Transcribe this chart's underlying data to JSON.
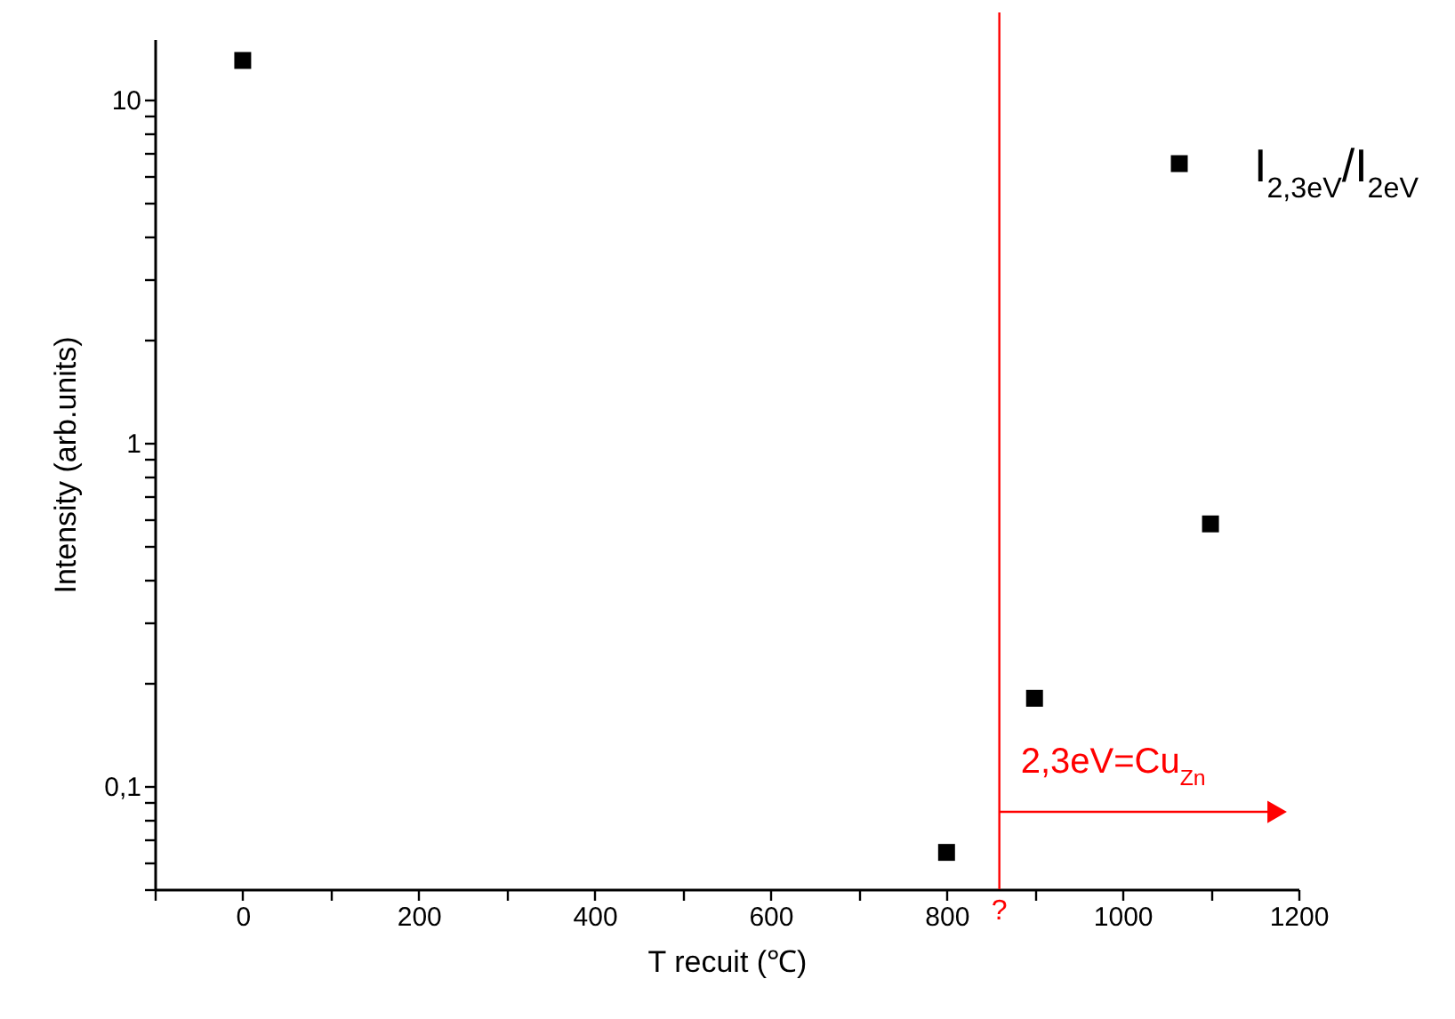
{
  "chart_data": {
    "type": "scatter",
    "xlabel": "T recuit (℃)",
    "ylabel": "Intensity (arb.units)",
    "x": [
      0,
      800,
      900,
      1100
    ],
    "series": [
      {
        "name": "I$_{2,3eV}$/I$_{2eV}$",
        "color": "#000000",
        "values": [
          13,
          0.064,
          0.18,
          0.58
        ]
      }
    ],
    "marker": "square",
    "log": "y",
    "legend": "top right",
    "grid": false,
    "xlim": [
      -100,
      1200
    ],
    "xticks": [
      {
        "value": -100,
        "label": null
      },
      0,
      {
        "value": 100,
        "label": null
      },
      200,
      {
        "value": 300,
        "label": null
      },
      400,
      {
        "value": 500,
        "label": null
      },
      600,
      {
        "value": 700,
        "label": null
      },
      800,
      {
        "value": 900,
        "label": null
      },
      1000,
      {
        "value": 1100,
        "label": null
      },
      1200
    ],
    "ylim": [
      0.05,
      15
    ],
    "yticks": [
      {
        "value": 0.05,
        "label": null
      },
      {
        "value": 0.06,
        "label": null
      },
      {
        "value": 0.07,
        "label": null
      },
      {
        "value": 0.08,
        "label": null
      },
      {
        "value": 0.09,
        "label": null
      },
      {
        "value": 0.1,
        "label": "0,1"
      },
      {
        "value": 0.2,
        "label": null
      },
      {
        "value": 0.3,
        "label": null
      },
      {
        "value": 0.4,
        "label": null
      },
      {
        "value": 0.5,
        "label": null
      },
      {
        "value": 0.6,
        "label": null
      },
      {
        "value": 0.7,
        "label": null
      },
      {
        "value": 0.8,
        "label": null
      },
      {
        "value": 0.9,
        "label": null
      },
      1,
      {
        "value": 2,
        "label": null
      },
      {
        "value": 3,
        "label": null
      },
      {
        "value": 4,
        "label": null
      },
      {
        "value": 5,
        "label": null
      },
      {
        "value": 6,
        "label": null
      },
      {
        "value": 7,
        "label": null
      },
      {
        "value": 8,
        "label": null
      },
      {
        "value": 9,
        "label": null
      },
      10
    ],
    "ref_lines": [
      {
        "axis": "x",
        "value": 860,
        "label": "?",
        "color": "#ff0000"
      }
    ],
    "annotations": [
      {
        "text": "2,3eV=Cu$_{Zn}$",
        "x": 860,
        "y": 0.084
      }
    ]
  }
}
